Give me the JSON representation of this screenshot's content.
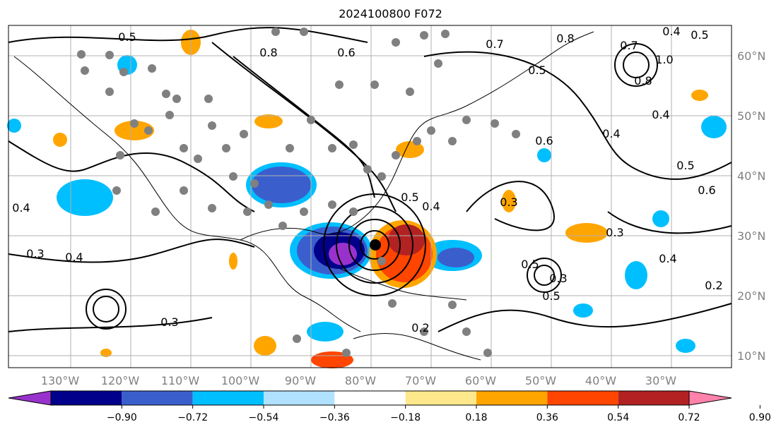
{
  "title": "2024100800 F072",
  "map": {
    "lon_labels": [
      "130°W",
      "120°W",
      "110°W",
      "100°W",
      "90°W",
      "80°W",
      "70°W",
      "60°W",
      "50°W",
      "40°W",
      "30°W"
    ],
    "lat_labels": [
      "60°N",
      "50°N",
      "40°N",
      "30°N",
      "20°N",
      "10°N"
    ],
    "contour_labels": [
      "0.5",
      "0.8",
      "0.6",
      "0.7",
      "0.8",
      "0.4",
      "0.5",
      "0.7",
      "1.0",
      "0.8",
      "0.5",
      "0.4",
      "0.6",
      "0.4",
      "0.5",
      "0.6",
      "0.4",
      "0.3",
      "0.4",
      "0.3",
      "0.3",
      "0.5",
      "0.3",
      "0.5",
      "0.4",
      "0.2",
      "0.2",
      "0.5",
      "0.4",
      "0.3"
    ],
    "grid": true
  },
  "colorbar": {
    "ticks": [
      "−0.90",
      "−0.72",
      "−0.54",
      "−0.36",
      "−0.18",
      "0.18",
      "0.36",
      "0.54",
      "0.72",
      "0.90"
    ],
    "colors": [
      "#9932cc",
      "#00008b",
      "#3a5fcd",
      "#00bfff",
      "#b0e2ff",
      "#ffffff",
      "#ffe88c",
      "#ffa500",
      "#ff4500",
      "#b22222",
      "#ff82ab"
    ]
  }
}
